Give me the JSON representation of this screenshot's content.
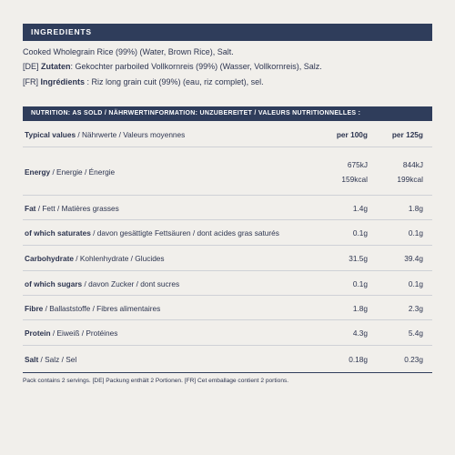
{
  "ingredients": {
    "heading": "INGREDIENTS",
    "lines": [
      {
        "prefix": "",
        "bold": "",
        "rest": "Cooked Wholegrain Rice (99%) (Water, Brown Rice), Salt."
      },
      {
        "prefix": "[DE] ",
        "bold": "Zutaten",
        "rest": ": Gekochter parboiled Vollkornreis (99%) (Wasser, Vollkornreis), Salz."
      },
      {
        "prefix": "[FR] ",
        "bold": "Ingrédients",
        "rest": " : Riz long grain cuit (99%) (eau, riz complet), sel."
      }
    ]
  },
  "nutrition": {
    "heading": "NUTRITION: AS SOLD / NÄHRWERTINFORMATION: UNZUBEREITET / VALEURS NUTRITIONNELLES :",
    "header": {
      "bold": "Typical values",
      "rest": " / Nährwerte / Valeurs moyennes",
      "col1": "per 100g",
      "col2": "per 125g"
    },
    "rows": [
      {
        "bold": "Energy",
        "rest": " / Energie / Énergie",
        "col1": [
          "675kJ",
          "159kcal"
        ],
        "col2": [
          "844kJ",
          "199kcal"
        ]
      },
      {
        "bold": "Fat",
        "rest": " / Fett / Matières grasses",
        "col1": [
          "1.4g"
        ],
        "col2": [
          "1.8g"
        ]
      },
      {
        "bold": "of which saturates",
        "rest": " / davon gesättigte Fettsäuren / dont acides gras saturés",
        "col1": [
          "0.1g"
        ],
        "col2": [
          "0.1g"
        ]
      },
      {
        "bold": "Carbohydrate",
        "rest": " / Kohlenhydrate / Glucides",
        "col1": [
          "31.5g"
        ],
        "col2": [
          "39.4g"
        ]
      },
      {
        "bold": "of which sugars",
        "rest": " / davon Zucker / dont sucres",
        "col1": [
          "0.1g"
        ],
        "col2": [
          "0.1g"
        ]
      },
      {
        "bold": "Fibre",
        "rest": " / Ballaststoffe / Fibres alimentaires",
        "col1": [
          "1.8g"
        ],
        "col2": [
          "2.3g"
        ]
      },
      {
        "bold": "Protein",
        "rest": " / Eiweiß / Protéines",
        "col1": [
          "4.3g"
        ],
        "col2": [
          "5.4g"
        ]
      },
      {
        "bold": "Salt",
        "rest": " / Salz / Sel",
        "col1": [
          "0.18g"
        ],
        "col2": [
          "0.23g"
        ]
      }
    ],
    "footnote": "Pack contains 2 servings. [DE] Packung enthält 2 Portionen. [FR] Cet emballage contient 2 portions."
  }
}
